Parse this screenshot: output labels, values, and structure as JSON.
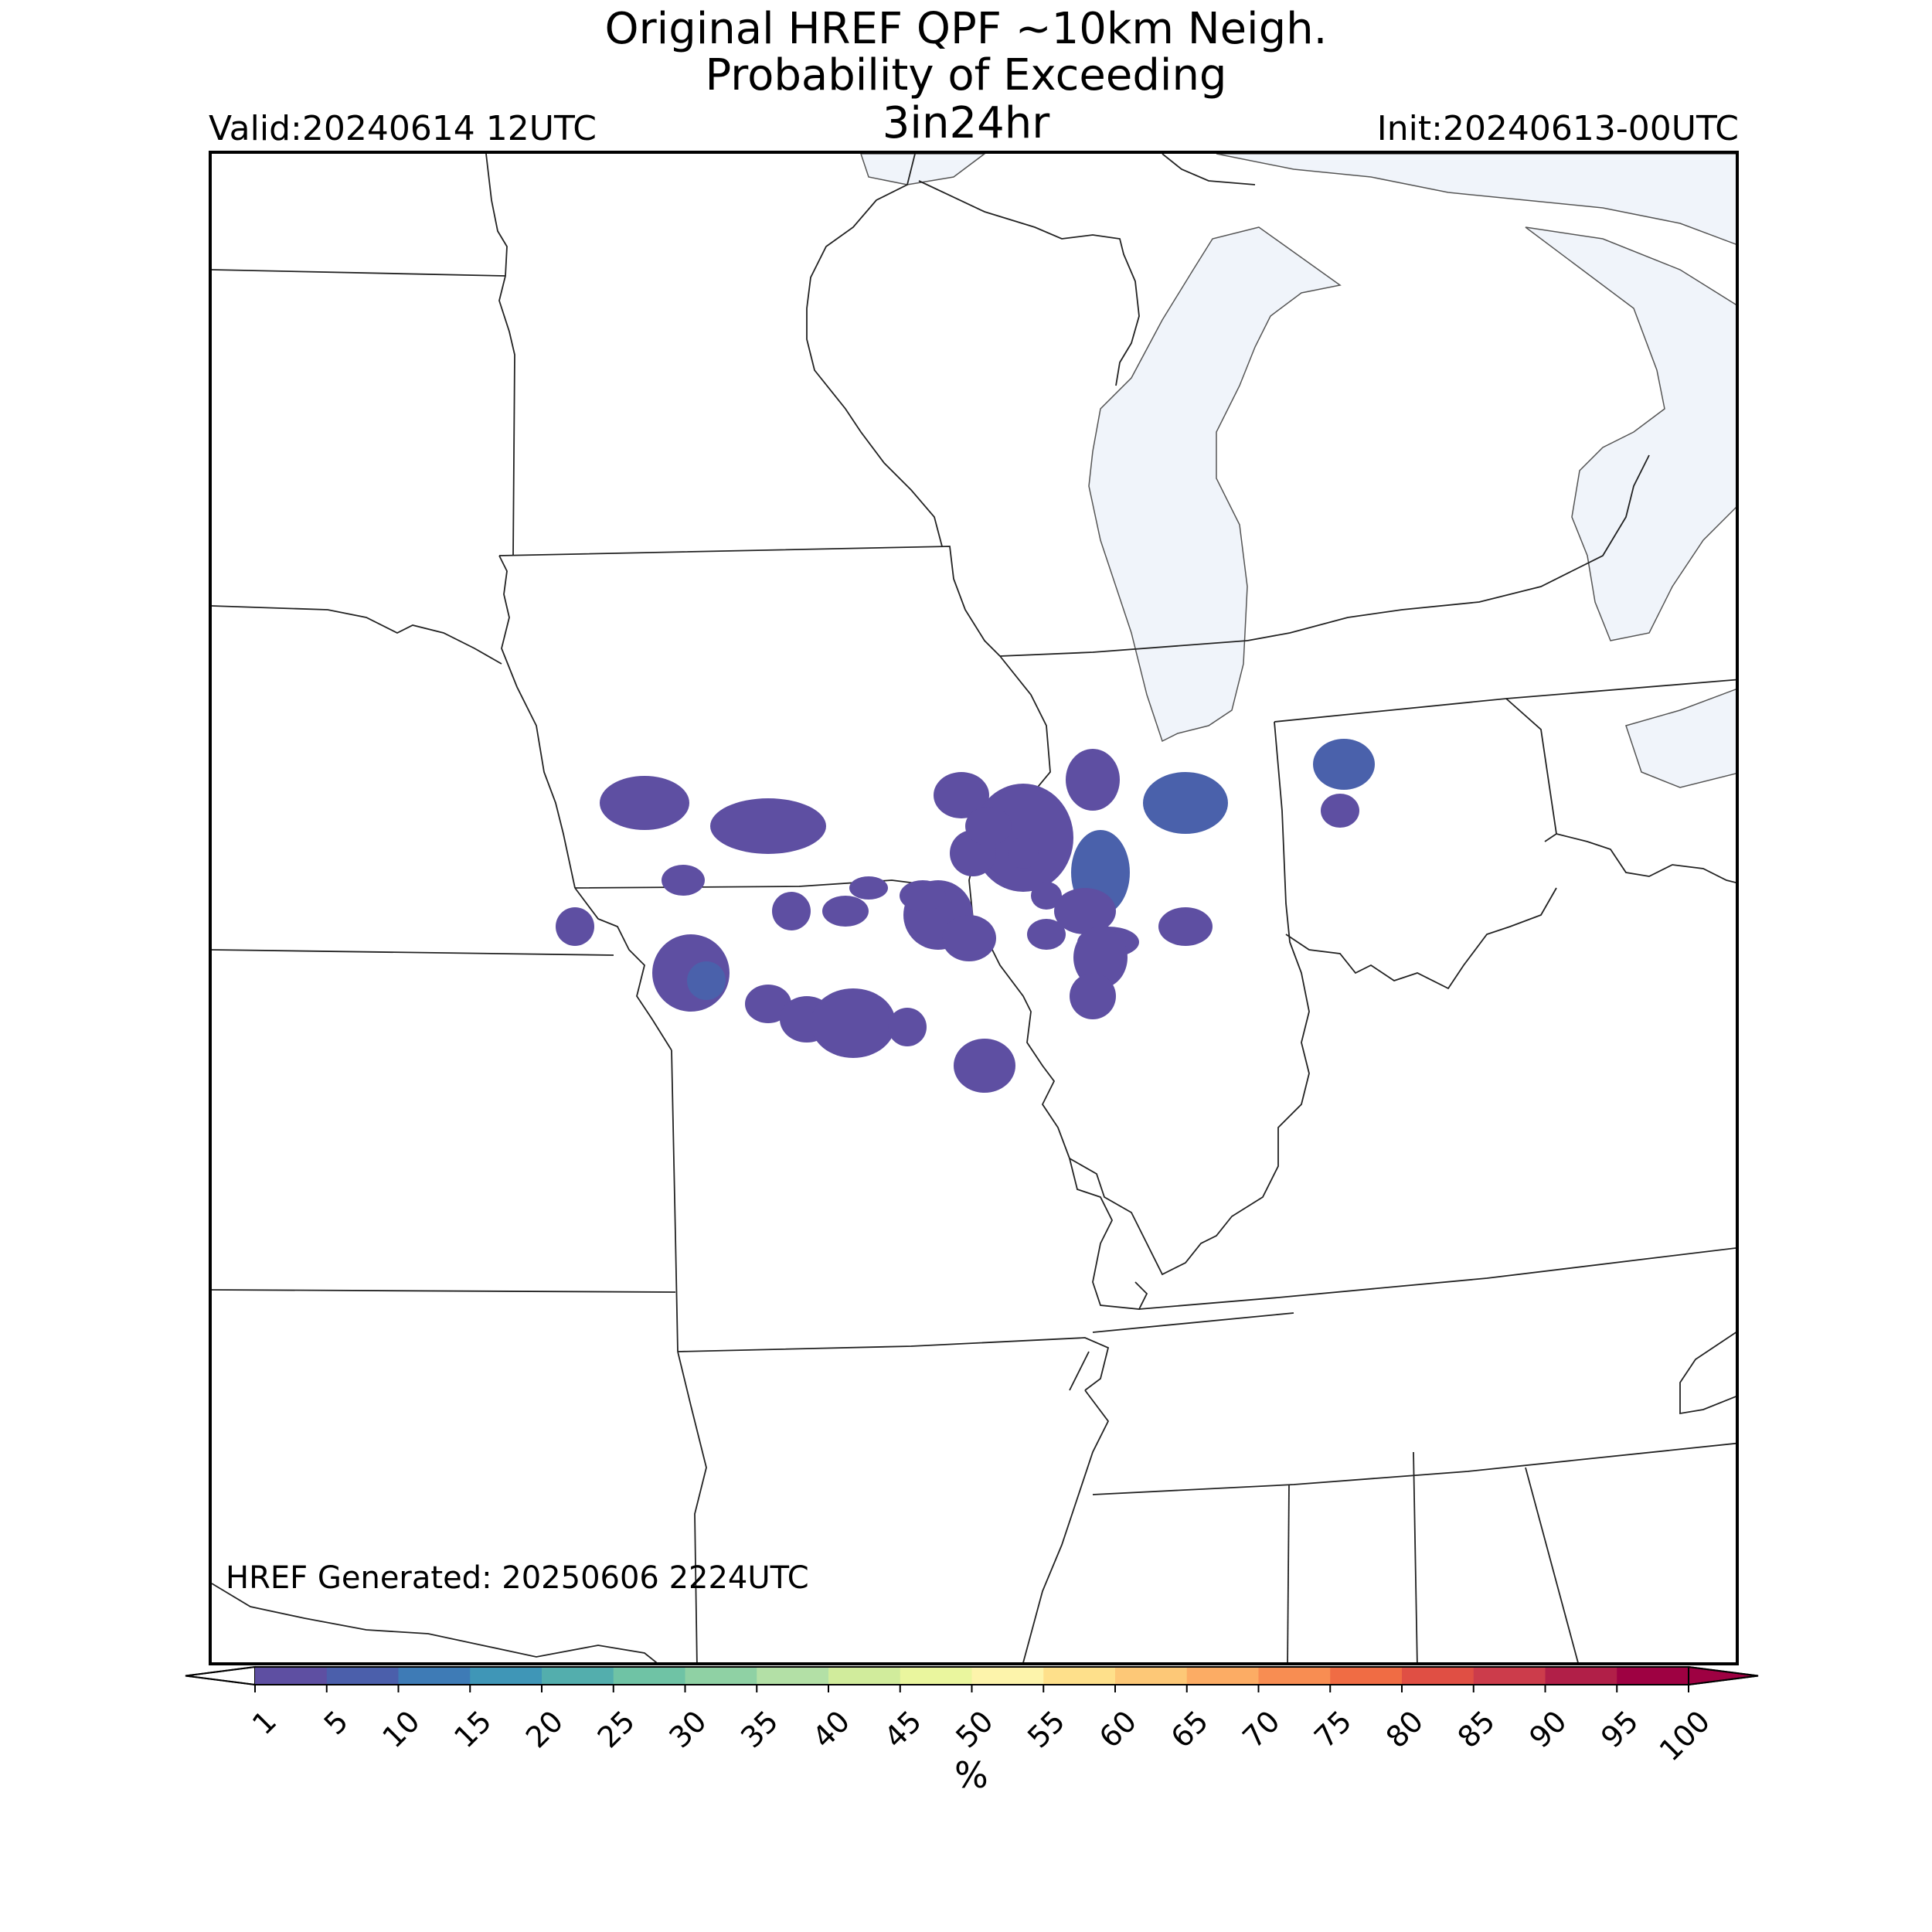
{
  "header": {
    "title_line1": "Original HREF QPF ~10km Neigh.",
    "title_line2": "Probability of Exceeding",
    "title_line3": "3in24hr",
    "valid": "Valid:20240614 12UTC",
    "init": "Init:20240613-00UTC"
  },
  "map": {
    "generated_label": "HREF Generated: 20250606 2224UTC",
    "water_color": "#f0f4fa",
    "border_color": "#222222",
    "probability_fill_color": "#5e4fa2",
    "probability_core_color": "#4a61ab"
  },
  "colorbar": {
    "unit_label": "%",
    "ticks": [
      "1",
      "5",
      "10",
      "15",
      "20",
      "25",
      "30",
      "35",
      "40",
      "45",
      "50",
      "55",
      "60",
      "65",
      "70",
      "75",
      "80",
      "85",
      "90",
      "95",
      "100"
    ],
    "colors": [
      "#5e4fa2",
      "#4b5fab",
      "#3e7bb6",
      "#3f96b7",
      "#53aead",
      "#6fc3a5",
      "#8fd1a4",
      "#b3e0a6",
      "#d1ec9c",
      "#eaf69e",
      "#fdf4ab",
      "#fee08b",
      "#fdc877",
      "#fcac64",
      "#f88d52",
      "#f06c44",
      "#e04f44",
      "#cc3c4b",
      "#b11f48",
      "#9e0142"
    ],
    "under_color": "#ffffff",
    "over_color": "#9e0142"
  }
}
